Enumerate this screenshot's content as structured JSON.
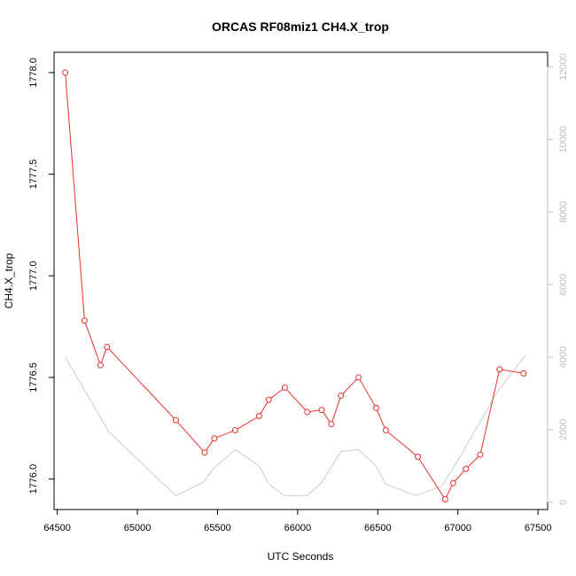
{
  "chart_data": {
    "type": "line",
    "title": "ORCAS RF08miz1 CH4.X_trop",
    "xlabel": "UTC Seconds",
    "ylabel": "CH4.X_trop",
    "xlim": [
      64480,
      67560
    ],
    "ylim": [
      1775.85,
      1778.1
    ],
    "y2lim": [
      -200,
      12400
    ],
    "x_ticks": [
      "64500",
      "65000",
      "65500",
      "66000",
      "66500",
      "67000",
      "67500"
    ],
    "y_ticks": [
      "1776.0",
      "1776.5",
      "1777.0",
      "1777.5",
      "1778.0"
    ],
    "y2_ticks": [
      "0",
      "2000",
      "4000",
      "6000",
      "8000",
      "10000",
      "12000"
    ],
    "series": [
      {
        "color": "#e8302a",
        "axis": "left",
        "marker": "circle",
        "x": [
          64550,
          64670,
          64770,
          64810,
          65240,
          65420,
          65480,
          65610,
          65760,
          65820,
          65920,
          66060,
          66150,
          66210,
          66270,
          66380,
          66490,
          66550,
          66750,
          66920,
          66970,
          67050,
          67140,
          67260,
          67410
        ],
        "y": [
          1778.0,
          1776.78,
          1776.56,
          1776.65,
          1776.29,
          1776.13,
          1776.2,
          1776.24,
          1776.31,
          1776.39,
          1776.45,
          1776.33,
          1776.34,
          1776.27,
          1776.41,
          1776.5,
          1776.35,
          1776.24,
          1776.11,
          1775.9,
          1775.98,
          1776.05,
          1776.12,
          1776.54,
          1776.52
        ]
      },
      {
        "color": "#cccccc",
        "axis": "right",
        "marker": "none",
        "x": [
          64550,
          64820,
          65240,
          65410,
          65480,
          65610,
          65760,
          65820,
          65920,
          66060,
          66150,
          66270,
          66380,
          66490,
          66550,
          66740,
          66900,
          67000,
          67240,
          67420
        ],
        "y": [
          4000,
          1950,
          180,
          550,
          950,
          1450,
          1000,
          500,
          180,
          180,
          550,
          1400,
          1450,
          1000,
          500,
          180,
          450,
          1150,
          3000,
          4050
        ]
      }
    ]
  }
}
